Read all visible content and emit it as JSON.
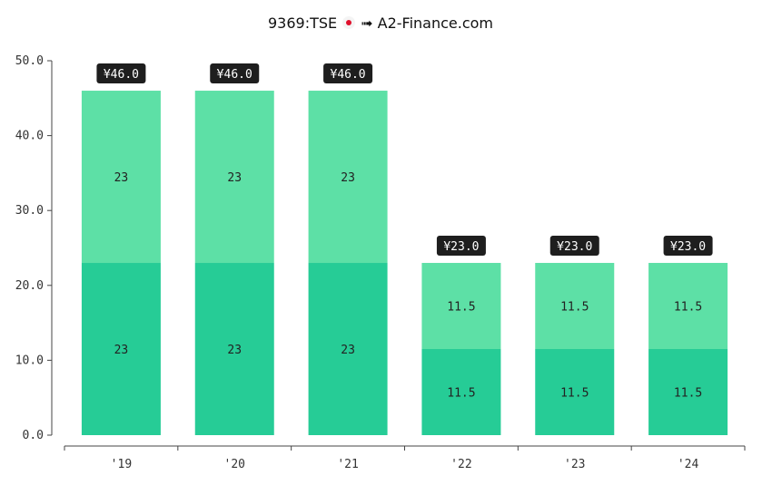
{
  "header": {
    "ticker": "9369:TSE",
    "flag_icon": "japan-flag-icon",
    "arrow": "➟",
    "site": "A2-Finance.com"
  },
  "chart_data": {
    "type": "bar",
    "stacked": true,
    "categories": [
      "'19",
      "'20",
      "'21",
      "'22",
      "'23",
      "'24"
    ],
    "series": [
      {
        "values": [
          23,
          23,
          23,
          11.5,
          11.5,
          11.5
        ],
        "color": "#26cc96"
      },
      {
        "values": [
          23,
          23,
          23,
          11.5,
          11.5,
          11.5
        ],
        "color": "#5de0a6"
      }
    ],
    "totals": [
      "¥46.0",
      "¥46.0",
      "¥46.0",
      "¥23.0",
      "¥23.0",
      "¥23.0"
    ],
    "segment_labels": [
      [
        "23",
        "23",
        "23",
        "11.5",
        "11.5",
        "11.5"
      ],
      [
        "23",
        "23",
        "23",
        "11.5",
        "11.5",
        "11.5"
      ]
    ],
    "ylim": [
      0,
      50
    ],
    "yticks": [
      "0.0",
      "10.0",
      "20.0",
      "30.0",
      "40.0",
      "50.0"
    ],
    "grid": false,
    "total_label_bg": "#1e1e1e",
    "axis_color": "#444444"
  }
}
